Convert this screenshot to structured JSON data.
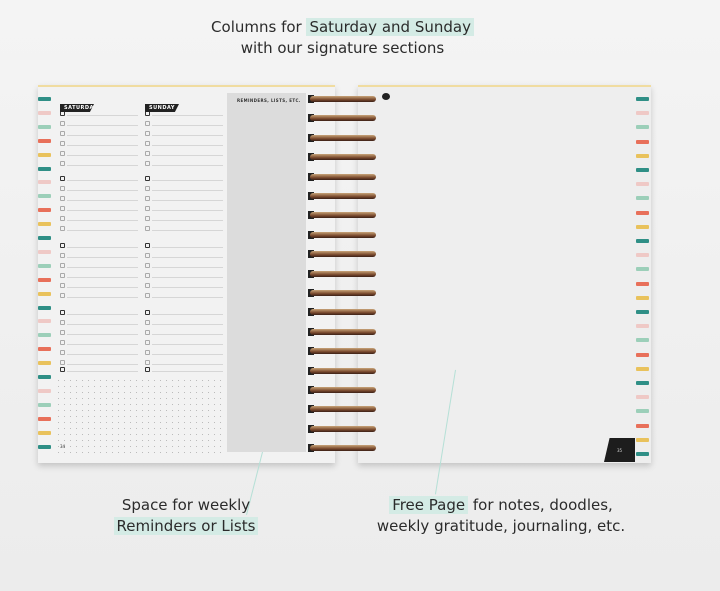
{
  "headline": {
    "pre": "Columns for ",
    "highlight": "Saturday and Sunday",
    "line2": "with our signature sections"
  },
  "left_page": {
    "days": [
      "SATURDAY",
      "SUNDAY"
    ],
    "reminders_label": "REMINDERS, LISTS, ETC.",
    "page_number": "34"
  },
  "right_page": {
    "page_number": "35"
  },
  "captions": {
    "reminders": {
      "line1": "Space for weekly",
      "highlight": "Reminders or Lists"
    },
    "free_page": {
      "highlight": "Free Page",
      "rest": " for notes, doodles,",
      "line2": "weekly gratitude, journaling, etc."
    }
  },
  "colors": {
    "highlight": "#d4ebe5",
    "tabs": [
      "#2f8f86",
      "#efc9c6",
      "#9ccfb9",
      "#e8705a",
      "#e9c25c"
    ],
    "spiral": "#9a6a44"
  }
}
